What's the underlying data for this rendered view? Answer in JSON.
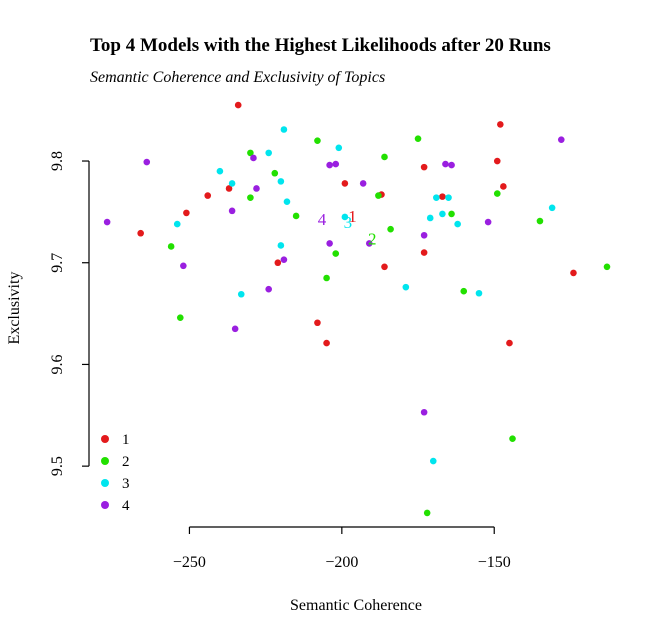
{
  "chart_data": {
    "type": "scatter",
    "title": "Top 4 Models with the Highest Likelihoods after 20 Runs",
    "subtitle": "Semantic Coherence and Exclusivity of Topics",
    "xlabel": "Semantic Coherence",
    "ylabel": "Exclusivity",
    "xlim": [
      -280,
      -113
    ],
    "ylim": [
      9.45,
      9.86
    ],
    "x_ticks": [
      -250,
      -200,
      -150
    ],
    "x_tick_labels": [
      "−250",
      "−200",
      "−150"
    ],
    "y_ticks": [
      9.5,
      9.6,
      9.7,
      9.8
    ],
    "y_tick_labels": [
      "9.5",
      "9.6",
      "9.7",
      "9.8"
    ],
    "grid": false,
    "legend_position": "bottom-left",
    "series": [
      {
        "name": "1",
        "color": "#e31a1c",
        "center": {
          "x": -196.5,
          "y": 9.744,
          "label": "1"
        },
        "points": [
          {
            "x": -234,
            "y": 9.855
          },
          {
            "x": -266,
            "y": 9.729
          },
          {
            "x": -251,
            "y": 9.749
          },
          {
            "x": -244,
            "y": 9.766
          },
          {
            "x": -237,
            "y": 9.773
          },
          {
            "x": -221,
            "y": 9.7
          },
          {
            "x": -199,
            "y": 9.778
          },
          {
            "x": -187,
            "y": 9.767
          },
          {
            "x": -186,
            "y": 9.696
          },
          {
            "x": -173,
            "y": 9.794
          },
          {
            "x": -173,
            "y": 9.71
          },
          {
            "x": -167,
            "y": 9.765
          },
          {
            "x": -149,
            "y": 9.8
          },
          {
            "x": -148,
            "y": 9.836
          },
          {
            "x": -147,
            "y": 9.775
          },
          {
            "x": -124,
            "y": 9.69
          },
          {
            "x": -145,
            "y": 9.621
          },
          {
            "x": -208,
            "y": 9.641
          },
          {
            "x": -205,
            "y": 9.621
          }
        ]
      },
      {
        "name": "2",
        "color": "#22e000",
        "center": {
          "x": -190,
          "y": 9.722,
          "label": "2"
        },
        "points": [
          {
            "x": -230,
            "y": 9.808
          },
          {
            "x": -208,
            "y": 9.82
          },
          {
            "x": -175,
            "y": 9.822
          },
          {
            "x": -186,
            "y": 9.804
          },
          {
            "x": -222,
            "y": 9.788
          },
          {
            "x": -230,
            "y": 9.764
          },
          {
            "x": -215,
            "y": 9.746
          },
          {
            "x": -188,
            "y": 9.766
          },
          {
            "x": -184,
            "y": 9.733
          },
          {
            "x": -164,
            "y": 9.748
          },
          {
            "x": -160,
            "y": 9.672
          },
          {
            "x": -202,
            "y": 9.709
          },
          {
            "x": -205,
            "y": 9.685
          },
          {
            "x": -256,
            "y": 9.716
          },
          {
            "x": -253,
            "y": 9.646
          },
          {
            "x": -149,
            "y": 9.768
          },
          {
            "x": -135,
            "y": 9.741
          },
          {
            "x": -113,
            "y": 9.696
          },
          {
            "x": -144,
            "y": 9.527
          },
          {
            "x": -172,
            "y": 9.454
          }
        ]
      },
      {
        "name": "3",
        "color": "#00e5ee",
        "center": {
          "x": -198,
          "y": 9.738,
          "label": "3"
        },
        "points": [
          {
            "x": -219,
            "y": 9.831
          },
          {
            "x": -201,
            "y": 9.813
          },
          {
            "x": -224,
            "y": 9.808
          },
          {
            "x": -240,
            "y": 9.79
          },
          {
            "x": -236,
            "y": 9.778
          },
          {
            "x": -220,
            "y": 9.78
          },
          {
            "x": -218,
            "y": 9.76
          },
          {
            "x": -254,
            "y": 9.738
          },
          {
            "x": -199,
            "y": 9.745
          },
          {
            "x": -220,
            "y": 9.717
          },
          {
            "x": -233,
            "y": 9.669
          },
          {
            "x": -179,
            "y": 9.676
          },
          {
            "x": -171,
            "y": 9.744
          },
          {
            "x": -169,
            "y": 9.764
          },
          {
            "x": -167,
            "y": 9.748
          },
          {
            "x": -165,
            "y": 9.764
          },
          {
            "x": -162,
            "y": 9.738
          },
          {
            "x": -155,
            "y": 9.67
          },
          {
            "x": -131,
            "y": 9.754
          },
          {
            "x": -170,
            "y": 9.505
          }
        ]
      },
      {
        "name": "4",
        "color": "#9a1fe0",
        "center": {
          "x": -206.5,
          "y": 9.741,
          "label": "4"
        },
        "points": [
          {
            "x": -264,
            "y": 9.799
          },
          {
            "x": -229,
            "y": 9.803
          },
          {
            "x": -228,
            "y": 9.773
          },
          {
            "x": -236,
            "y": 9.751
          },
          {
            "x": -204,
            "y": 9.796
          },
          {
            "x": -202,
            "y": 9.797
          },
          {
            "x": -193,
            "y": 9.778
          },
          {
            "x": -166,
            "y": 9.797
          },
          {
            "x": -164,
            "y": 9.796
          },
          {
            "x": -128,
            "y": 9.821
          },
          {
            "x": -152,
            "y": 9.74
          },
          {
            "x": -173,
            "y": 9.727
          },
          {
            "x": -191,
            "y": 9.719
          },
          {
            "x": -204,
            "y": 9.719
          },
          {
            "x": -219,
            "y": 9.703
          },
          {
            "x": -224,
            "y": 9.674
          },
          {
            "x": -235,
            "y": 9.635
          },
          {
            "x": -252,
            "y": 9.697
          },
          {
            "x": -277,
            "y": 9.74
          },
          {
            "x": -173,
            "y": 9.553
          }
        ]
      }
    ]
  }
}
